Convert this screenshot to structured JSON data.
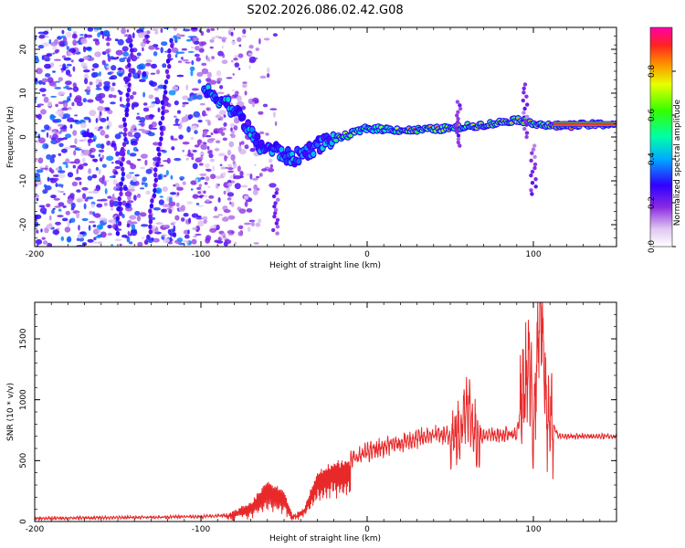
{
  "title": "S202.2026.086.02.42.G08",
  "chart_data": [
    {
      "type": "heatmap",
      "xlabel": "Height of straight line (km)",
      "ylabel": "Frequency (Hz)",
      "xlim": [
        -200,
        150
      ],
      "ylim": [
        -25,
        25
      ],
      "x_ticks": [
        -200,
        -100,
        0,
        100
      ],
      "y_ticks": [
        -20,
        -10,
        0,
        10,
        20
      ],
      "colorbar": {
        "label": "Normalized spectral amplitude",
        "range": [
          0,
          1
        ],
        "ticks": [
          0.0,
          0.2,
          0.4,
          0.6,
          0.8
        ]
      },
      "ridge": {
        "description_points": [
          {
            "x": -95,
            "y": 10
          },
          {
            "x": -85,
            "y": 8
          },
          {
            "x": -75,
            "y": 4
          },
          {
            "x": -65,
            "y": -2
          },
          {
            "x": -55,
            "y": -3
          },
          {
            "x": -45,
            "y": -5
          },
          {
            "x": -35,
            "y": -3
          },
          {
            "x": -25,
            "y": -1
          },
          {
            "x": -15,
            "y": 0
          },
          {
            "x": 0,
            "y": 2
          },
          {
            "x": 25,
            "y": 1.5
          },
          {
            "x": 50,
            "y": 2
          },
          {
            "x": 75,
            "y": 3
          },
          {
            "x": 90,
            "y": 4
          },
          {
            "x": 110,
            "y": 2.5
          },
          {
            "x": 150,
            "y": 3
          }
        ]
      }
    },
    {
      "type": "line",
      "xlabel": "Height of straight line (km)",
      "ylabel": "SNR (10 * v/v)",
      "xlim": [
        -200,
        150
      ],
      "ylim": [
        0,
        1800
      ],
      "x_ticks": [
        -200,
        -100,
        0,
        100
      ],
      "y_ticks": [
        0,
        500,
        1000,
        1500
      ],
      "color": "#e8292a",
      "envelope": [
        {
          "x": -200,
          "y": 25
        },
        {
          "x": -100,
          "y": 40
        },
        {
          "x": -85,
          "y": 50
        },
        {
          "x": -70,
          "y": 150
        },
        {
          "x": -60,
          "y": 320
        },
        {
          "x": -50,
          "y": 250
        },
        {
          "x": -45,
          "y": 40
        },
        {
          "x": -38,
          "y": 100
        },
        {
          "x": -30,
          "y": 400
        },
        {
          "x": -20,
          "y": 480
        },
        {
          "x": -10,
          "y": 500
        },
        {
          "x": 0,
          "y": 570
        },
        {
          "x": 20,
          "y": 650
        },
        {
          "x": 40,
          "y": 710
        },
        {
          "x": 55,
          "y": 700
        },
        {
          "x": 60,
          "y": 1000
        },
        {
          "x": 65,
          "y": 700
        },
        {
          "x": 90,
          "y": 720
        },
        {
          "x": 97,
          "y": 1300
        },
        {
          "x": 100,
          "y": 800
        },
        {
          "x": 104,
          "y": 1800
        },
        {
          "x": 108,
          "y": 900
        },
        {
          "x": 115,
          "y": 700
        },
        {
          "x": 150,
          "y": 700
        }
      ]
    }
  ]
}
